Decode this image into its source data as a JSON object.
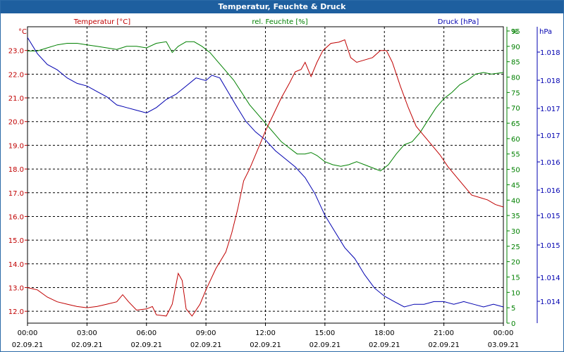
{
  "chart_data": {
    "type": "line",
    "title": "Temperatur, Feuchte & Druck",
    "x_ticks": [
      {
        "time": "00:00",
        "date": "02.09.21"
      },
      {
        "time": "03:00",
        "date": "02.09.21"
      },
      {
        "time": "06:00",
        "date": "02.09.21"
      },
      {
        "time": "09:00",
        "date": "02.09.21"
      },
      {
        "time": "12:00",
        "date": "02.09.21"
      },
      {
        "time": "15:00",
        "date": "02.09.21"
      },
      {
        "time": "18:00",
        "date": "02.09.21"
      },
      {
        "time": "21:00",
        "date": "02.09.21"
      },
      {
        "time": "00:00",
        "date": "03.09.21"
      }
    ],
    "x_range_hours": [
      0,
      24
    ],
    "temperature": {
      "legend": "Temperatur [°C]",
      "unit": "°C",
      "color": "#c00000",
      "ylim": [
        11.5,
        24.0
      ],
      "ticks": [
        "12.0",
        "13.0",
        "14.0",
        "15.0",
        "16.0",
        "17.0",
        "18.0",
        "19.0",
        "20.0",
        "21.0",
        "22.0",
        "23.0"
      ],
      "points": [
        [
          0,
          13.0
        ],
        [
          0.5,
          12.9
        ],
        [
          1,
          12.6
        ],
        [
          1.5,
          12.4
        ],
        [
          2,
          12.3
        ],
        [
          2.5,
          12.2
        ],
        [
          3,
          12.15
        ],
        [
          3.5,
          12.2
        ],
        [
          4,
          12.3
        ],
        [
          4.5,
          12.4
        ],
        [
          4.8,
          12.7
        ],
        [
          5.1,
          12.4
        ],
        [
          5.5,
          12.05
        ],
        [
          6,
          12.1
        ],
        [
          6.3,
          12.2
        ],
        [
          6.5,
          11.85
        ],
        [
          7,
          11.8
        ],
        [
          7.3,
          12.3
        ],
        [
          7.6,
          13.6
        ],
        [
          7.8,
          13.3
        ],
        [
          8,
          12.1
        ],
        [
          8.3,
          11.8
        ],
        [
          8.7,
          12.3
        ],
        [
          9,
          12.9
        ],
        [
          9.5,
          13.8
        ],
        [
          10,
          14.5
        ],
        [
          10.3,
          15.3
        ],
        [
          10.6,
          16.3
        ],
        [
          10.9,
          17.5
        ],
        [
          11.2,
          18.0
        ],
        [
          11.6,
          18.8
        ],
        [
          12,
          19.6
        ],
        [
          12.4,
          20.3
        ],
        [
          12.8,
          21.0
        ],
        [
          13.2,
          21.6
        ],
        [
          13.5,
          22.1
        ],
        [
          13.8,
          22.2
        ],
        [
          14,
          22.5
        ],
        [
          14.3,
          21.9
        ],
        [
          14.6,
          22.5
        ],
        [
          14.9,
          23.0
        ],
        [
          15.3,
          23.3
        ],
        [
          15.7,
          23.35
        ],
        [
          16,
          23.45
        ],
        [
          16.3,
          22.7
        ],
        [
          16.6,
          22.5
        ],
        [
          17,
          22.6
        ],
        [
          17.4,
          22.7
        ],
        [
          17.8,
          23.0
        ],
        [
          18.1,
          23.0
        ],
        [
          18.4,
          22.5
        ],
        [
          18.8,
          21.5
        ],
        [
          19.2,
          20.6
        ],
        [
          19.6,
          19.8
        ],
        [
          20,
          19.4
        ],
        [
          20.4,
          19.0
        ],
        [
          20.8,
          18.6
        ],
        [
          21.2,
          18.1
        ],
        [
          21.6,
          17.7
        ],
        [
          22,
          17.3
        ],
        [
          22.4,
          16.9
        ],
        [
          22.8,
          16.8
        ],
        [
          23.2,
          16.7
        ],
        [
          23.6,
          16.5
        ],
        [
          24,
          16.4
        ]
      ]
    },
    "humidity": {
      "legend": "rel. Feuchte [%]",
      "unit": "%",
      "color": "#008000",
      "ylim": [
        0,
        95
      ],
      "ticks": [
        "0",
        "5",
        "10",
        "15",
        "20",
        "25",
        "30",
        "35",
        "40",
        "45",
        "50",
        "55",
        "60",
        "65",
        "70",
        "75",
        "80",
        "85",
        "90",
        "95"
      ],
      "points": [
        [
          0,
          88.5
        ],
        [
          0.5,
          88.5
        ],
        [
          1,
          89.5
        ],
        [
          1.5,
          90.5
        ],
        [
          2,
          91.0
        ],
        [
          2.5,
          91.0
        ],
        [
          3,
          90.5
        ],
        [
          3.5,
          90.0
        ],
        [
          4,
          89.5
        ],
        [
          4.5,
          89.0
        ],
        [
          5,
          90.0
        ],
        [
          5.5,
          90.0
        ],
        [
          6,
          89.5
        ],
        [
          6.5,
          91.0
        ],
        [
          7,
          91.5
        ],
        [
          7.3,
          88.0
        ],
        [
          7.6,
          90.0
        ],
        [
          8,
          91.5
        ],
        [
          8.4,
          91.5
        ],
        [
          8.8,
          90.0
        ],
        [
          9.2,
          88.0
        ],
        [
          9.6,
          85.0
        ],
        [
          10,
          82.0
        ],
        [
          10.4,
          79.0
        ],
        [
          10.8,
          75.0
        ],
        [
          11.2,
          71.0
        ],
        [
          11.6,
          68.0
        ],
        [
          12,
          65.0
        ],
        [
          12.4,
          62.0
        ],
        [
          12.8,
          59.0
        ],
        [
          13.2,
          57.0
        ],
        [
          13.6,
          55.0
        ],
        [
          14,
          55.0
        ],
        [
          14.3,
          55.5
        ],
        [
          14.6,
          54.5
        ],
        [
          15,
          52.5
        ],
        [
          15.4,
          51.5
        ],
        [
          15.8,
          51.0
        ],
        [
          16.2,
          51.5
        ],
        [
          16.6,
          52.5
        ],
        [
          17,
          51.5
        ],
        [
          17.4,
          50.5
        ],
        [
          17.8,
          49.5
        ],
        [
          18.2,
          51.5
        ],
        [
          18.6,
          55.0
        ],
        [
          19,
          58.0
        ],
        [
          19.4,
          59.0
        ],
        [
          19.8,
          62.0
        ],
        [
          20.2,
          66.0
        ],
        [
          20.6,
          70.0
        ],
        [
          21,
          73.0
        ],
        [
          21.4,
          75.0
        ],
        [
          21.8,
          77.5
        ],
        [
          22.2,
          79.0
        ],
        [
          22.6,
          81.0
        ],
        [
          23,
          81.5
        ],
        [
          23.4,
          81.0
        ],
        [
          24,
          81.5
        ]
      ]
    },
    "pressure": {
      "legend": "Druck [hPa]",
      "unit": "hPa",
      "color": "#0000b0",
      "ylim": [
        1013.3,
        1018.8
      ],
      "ticks": [
        "1.014",
        "1.014",
        "1.015",
        "1.015",
        "1.016",
        "1.016",
        "1.017",
        "1.017",
        "1.018",
        "1.018"
      ],
      "points": [
        [
          0,
          1018.6
        ],
        [
          0.5,
          1018.3
        ],
        [
          1,
          1018.1
        ],
        [
          1.5,
          1018.0
        ],
        [
          2,
          1017.85
        ],
        [
          2.5,
          1017.75
        ],
        [
          3,
          1017.7
        ],
        [
          3.5,
          1017.6
        ],
        [
          4,
          1017.5
        ],
        [
          4.5,
          1017.35
        ],
        [
          5,
          1017.3
        ],
        [
          5.5,
          1017.25
        ],
        [
          6,
          1017.2
        ],
        [
          6.5,
          1017.3
        ],
        [
          7,
          1017.45
        ],
        [
          7.5,
          1017.55
        ],
        [
          8,
          1017.7
        ],
        [
          8.5,
          1017.85
        ],
        [
          9,
          1017.8
        ],
        [
          9.3,
          1017.9
        ],
        [
          9.7,
          1017.85
        ],
        [
          10.1,
          1017.6
        ],
        [
          10.5,
          1017.35
        ],
        [
          11,
          1017.05
        ],
        [
          11.5,
          1016.85
        ],
        [
          12,
          1016.7
        ],
        [
          12.5,
          1016.5
        ],
        [
          13,
          1016.35
        ],
        [
          13.5,
          1016.2
        ],
        [
          14,
          1016.0
        ],
        [
          14.5,
          1015.7
        ],
        [
          15,
          1015.3
        ],
        [
          15.5,
          1015.0
        ],
        [
          16,
          1014.7
        ],
        [
          16.5,
          1014.5
        ],
        [
          17,
          1014.2
        ],
        [
          17.5,
          1013.95
        ],
        [
          18,
          1013.8
        ],
        [
          18.5,
          1013.7
        ],
        [
          19,
          1013.6
        ],
        [
          19.5,
          1013.65
        ],
        [
          20,
          1013.65
        ],
        [
          20.5,
          1013.7
        ],
        [
          21,
          1013.7
        ],
        [
          21.5,
          1013.65
        ],
        [
          22,
          1013.7
        ],
        [
          22.5,
          1013.65
        ],
        [
          23,
          1013.6
        ],
        [
          23.5,
          1013.65
        ],
        [
          24,
          1013.6
        ]
      ]
    }
  }
}
